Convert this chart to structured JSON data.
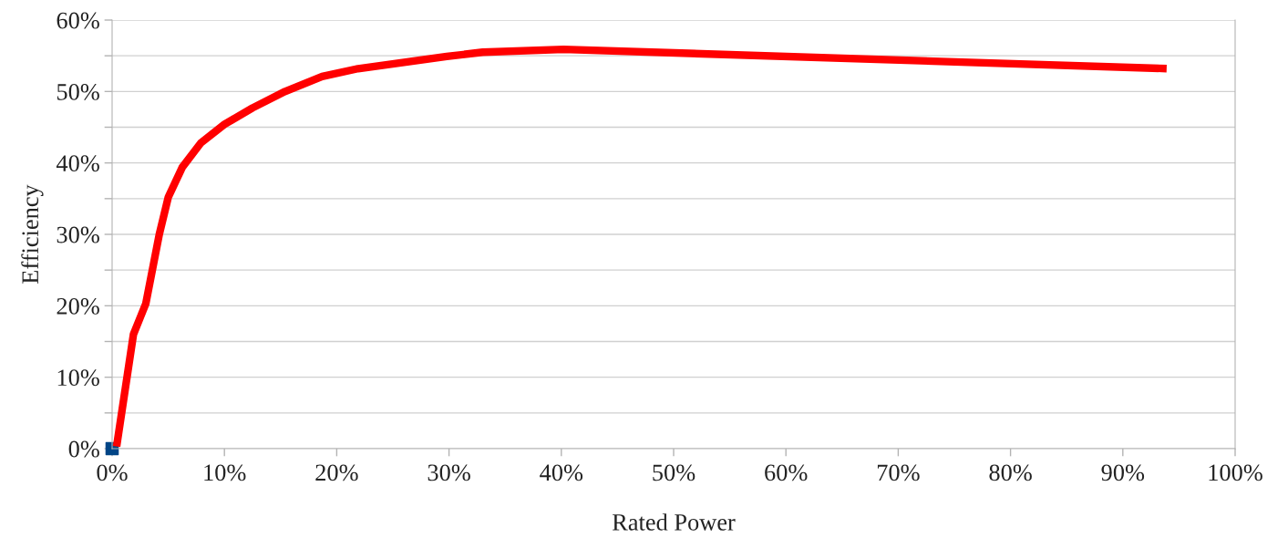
{
  "chart_data": {
    "type": "line",
    "xlabel": "Rated Power",
    "ylabel": "Efficiency",
    "series": [
      {
        "color": "#ff0000",
        "x": [
          0.4,
          1.9,
          3.0,
          4.2,
          5.0,
          6.25,
          7.9,
          10.0,
          12.5,
          15.4,
          18.7,
          21.9,
          29.8,
          33.0,
          40.2,
          93.9
        ],
        "values": [
          0.3,
          16.0,
          20.3,
          30.0,
          35.2,
          39.4,
          42.8,
          45.4,
          47.7,
          50.0,
          52.1,
          53.2,
          54.9,
          55.5,
          55.9,
          53.2
        ]
      },
      {
        "type": "scatter",
        "color": "#004586",
        "marker": "square",
        "x": [
          0
        ],
        "values": [
          0
        ]
      }
    ],
    "xlim": [
      0,
      100
    ],
    "ylim": [
      0,
      60
    ],
    "xticks": [
      {
        "value": 0,
        "label": "0%"
      },
      {
        "value": 10,
        "label": "10%"
      },
      {
        "value": 20,
        "label": "20%"
      },
      {
        "value": 30,
        "label": "30%"
      },
      {
        "value": 40,
        "label": "40%"
      },
      {
        "value": 50,
        "label": "50%"
      },
      {
        "value": 60,
        "label": "60%"
      },
      {
        "value": 70,
        "label": "70%"
      },
      {
        "value": 80,
        "label": "80%"
      },
      {
        "value": 90,
        "label": "90%"
      },
      {
        "value": 100,
        "label": "100%"
      }
    ],
    "yticks": [
      {
        "value": 0,
        "label": "0%"
      },
      {
        "value": 5,
        "label": null
      },
      {
        "value": 10,
        "label": "10%"
      },
      {
        "value": 15,
        "label": null
      },
      {
        "value": 20,
        "label": "20%"
      },
      {
        "value": 25,
        "label": null
      },
      {
        "value": 30,
        "label": "30%"
      },
      {
        "value": 35,
        "label": null
      },
      {
        "value": 40,
        "label": "40%"
      },
      {
        "value": 45,
        "label": null
      },
      {
        "value": 50,
        "label": "50%"
      },
      {
        "value": 55,
        "label": null
      },
      {
        "value": 60,
        "label": "60%"
      }
    ],
    "grid": "y"
  }
}
